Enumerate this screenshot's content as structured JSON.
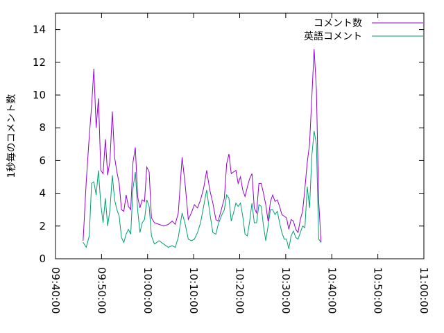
{
  "chart_data": {
    "type": "line",
    "ylabel": "1秒毎のコメント数",
    "ylim": [
      0,
      15
    ],
    "yticks": [
      0,
      2,
      4,
      6,
      8,
      10,
      12,
      14
    ],
    "xlim": [
      "09:40:00",
      "11:00:00"
    ],
    "xticks": [
      "09:40:00",
      "09:50:00",
      "10:00:00",
      "10:10:00",
      "10:20:00",
      "10:30:00",
      "10:40:00",
      "10:50:00",
      "11:00:00"
    ],
    "legend_position": "top-right",
    "grid": false,
    "series": [
      {
        "name": "コメント数",
        "color": "#9400d3",
        "points": [
          [
            "09:46:00",
            1.1
          ],
          [
            "09:46:40",
            4.7
          ],
          [
            "09:47:20",
            7.5
          ],
          [
            "09:47:50",
            9.3
          ],
          [
            "09:48:20",
            11.6
          ],
          [
            "09:48:50",
            8.0
          ],
          [
            "09:49:20",
            9.8
          ],
          [
            "09:49:50",
            5.4
          ],
          [
            "09:50:20",
            5.2
          ],
          [
            "09:50:50",
            7.3
          ],
          [
            "09:51:20",
            5.1
          ],
          [
            "09:51:50",
            6.0
          ],
          [
            "09:52:20",
            9.0
          ],
          [
            "09:52:50",
            6.2
          ],
          [
            "09:53:20",
            5.3
          ],
          [
            "09:53:50",
            4.6
          ],
          [
            "09:54:20",
            3.0
          ],
          [
            "09:54:50",
            2.9
          ],
          [
            "09:55:20",
            3.9
          ],
          [
            "09:55:50",
            3.2
          ],
          [
            "09:56:20",
            3.0
          ],
          [
            "09:56:50",
            5.9
          ],
          [
            "09:57:20",
            6.8
          ],
          [
            "09:57:50",
            3.8
          ],
          [
            "09:58:20",
            3.1
          ],
          [
            "09:58:50",
            3.6
          ],
          [
            "09:59:20",
            3.5
          ],
          [
            "09:59:50",
            5.6
          ],
          [
            "10:00:20",
            5.3
          ],
          [
            "10:00:50",
            2.5
          ],
          [
            "10:01:30",
            2.2
          ],
          [
            "10:02:30",
            2.1
          ],
          [
            "10:03:30",
            2.0
          ],
          [
            "10:04:30",
            2.1
          ],
          [
            "10:05:20",
            2.3
          ],
          [
            "10:06:00",
            2.1
          ],
          [
            "10:06:40",
            2.8
          ],
          [
            "10:07:30",
            6.2
          ],
          [
            "10:08:10",
            4.5
          ],
          [
            "10:08:50",
            2.4
          ],
          [
            "10:09:30",
            2.8
          ],
          [
            "10:10:10",
            3.3
          ],
          [
            "10:10:50",
            3.1
          ],
          [
            "10:11:30",
            3.6
          ],
          [
            "10:12:10",
            4.3
          ],
          [
            "10:12:50",
            5.4
          ],
          [
            "10:13:30",
            4.2
          ],
          [
            "10:14:10",
            3.4
          ],
          [
            "10:14:50",
            2.4
          ],
          [
            "10:15:20",
            2.3
          ],
          [
            "10:16:00",
            3.0
          ],
          [
            "10:16:40",
            3.7
          ],
          [
            "10:17:10",
            5.8
          ],
          [
            "10:17:40",
            6.4
          ],
          [
            "10:18:10",
            5.2
          ],
          [
            "10:18:40",
            5.3
          ],
          [
            "10:19:10",
            5.4
          ],
          [
            "10:19:40",
            4.6
          ],
          [
            "10:20:10",
            5.0
          ],
          [
            "10:20:40",
            4.2
          ],
          [
            "10:21:10",
            3.8
          ],
          [
            "10:21:40",
            4.4
          ],
          [
            "10:22:10",
            4.9
          ],
          [
            "10:22:40",
            5.2
          ],
          [
            "10:23:10",
            3.1
          ],
          [
            "10:23:40",
            2.8
          ],
          [
            "10:24:10",
            4.6
          ],
          [
            "10:24:40",
            4.6
          ],
          [
            "10:25:10",
            4.0
          ],
          [
            "10:25:40",
            3.3
          ],
          [
            "10:26:10",
            2.3
          ],
          [
            "10:26:40",
            3.5
          ],
          [
            "10:27:10",
            3.9
          ],
          [
            "10:27:40",
            3.5
          ],
          [
            "10:28:10",
            3.6
          ],
          [
            "10:28:40",
            3.2
          ],
          [
            "10:29:10",
            2.7
          ],
          [
            "10:29:40",
            2.6
          ],
          [
            "10:30:10",
            2.5
          ],
          [
            "10:30:40",
            1.8
          ],
          [
            "10:31:10",
            2.4
          ],
          [
            "10:31:40",
            2.3
          ],
          [
            "10:32:10",
            1.8
          ],
          [
            "10:32:40",
            1.6
          ],
          [
            "10:33:10",
            2.4
          ],
          [
            "10:33:40",
            2.9
          ],
          [
            "10:34:10",
            4.3
          ],
          [
            "10:34:40",
            5.9
          ],
          [
            "10:35:10",
            7.0
          ],
          [
            "10:35:40",
            9.9
          ],
          [
            "10:36:10",
            12.8
          ],
          [
            "10:36:40",
            10.3
          ],
          [
            "10:37:10",
            3.5
          ],
          [
            "10:37:40",
            1.0
          ]
        ]
      },
      {
        "name": "英語コメント",
        "color": "#009e73",
        "points": [
          [
            "09:46:00",
            1.0
          ],
          [
            "09:46:40",
            0.7
          ],
          [
            "09:47:20",
            1.4
          ],
          [
            "09:47:50",
            4.6
          ],
          [
            "09:48:20",
            4.7
          ],
          [
            "09:48:50",
            3.9
          ],
          [
            "09:49:20",
            5.4
          ],
          [
            "09:49:50",
            3.3
          ],
          [
            "09:50:20",
            2.2
          ],
          [
            "09:50:50",
            3.7
          ],
          [
            "09:51:20",
            2.0
          ],
          [
            "09:51:50",
            3.0
          ],
          [
            "09:52:20",
            5.1
          ],
          [
            "09:52:50",
            3.6
          ],
          [
            "09:53:20",
            3.0
          ],
          [
            "09:53:50",
            2.6
          ],
          [
            "09:54:20",
            1.3
          ],
          [
            "09:54:50",
            1.0
          ],
          [
            "09:55:20",
            1.5
          ],
          [
            "09:55:50",
            1.8
          ],
          [
            "09:56:20",
            1.5
          ],
          [
            "09:56:50",
            4.3
          ],
          [
            "09:57:20",
            5.3
          ],
          [
            "09:57:50",
            3.0
          ],
          [
            "09:58:20",
            1.6
          ],
          [
            "09:58:50",
            2.2
          ],
          [
            "09:59:20",
            2.4
          ],
          [
            "09:59:50",
            3.6
          ],
          [
            "10:00:20",
            3.2
          ],
          [
            "10:00:50",
            1.4
          ],
          [
            "10:01:30",
            0.9
          ],
          [
            "10:02:30",
            1.1
          ],
          [
            "10:03:30",
            0.9
          ],
          [
            "10:04:30",
            0.7
          ],
          [
            "10:05:20",
            0.8
          ],
          [
            "10:06:00",
            0.7
          ],
          [
            "10:06:40",
            1.3
          ],
          [
            "10:07:30",
            2.8
          ],
          [
            "10:08:10",
            2.1
          ],
          [
            "10:08:50",
            1.2
          ],
          [
            "10:09:30",
            1.1
          ],
          [
            "10:10:10",
            1.2
          ],
          [
            "10:10:50",
            1.6
          ],
          [
            "10:11:30",
            2.2
          ],
          [
            "10:12:10",
            3.2
          ],
          [
            "10:12:50",
            4.2
          ],
          [
            "10:13:30",
            2.8
          ],
          [
            "10:14:10",
            1.6
          ],
          [
            "10:14:50",
            1.5
          ],
          [
            "10:15:20",
            2.1
          ],
          [
            "10:16:00",
            2.6
          ],
          [
            "10:16:40",
            3.0
          ],
          [
            "10:17:10",
            3.9
          ],
          [
            "10:17:40",
            3.7
          ],
          [
            "10:18:10",
            2.3
          ],
          [
            "10:18:40",
            2.8
          ],
          [
            "10:19:10",
            3.4
          ],
          [
            "10:19:40",
            3.2
          ],
          [
            "10:20:10",
            3.4
          ],
          [
            "10:20:40",
            2.6
          ],
          [
            "10:21:10",
            1.5
          ],
          [
            "10:21:40",
            1.4
          ],
          [
            "10:22:10",
            2.3
          ],
          [
            "10:22:40",
            3.4
          ],
          [
            "10:23:10",
            2.2
          ],
          [
            "10:23:40",
            2.2
          ],
          [
            "10:24:10",
            3.3
          ],
          [
            "10:24:40",
            3.2
          ],
          [
            "10:25:10",
            2.0
          ],
          [
            "10:25:40",
            1.1
          ],
          [
            "10:26:10",
            2.0
          ],
          [
            "10:26:40",
            3.0
          ],
          [
            "10:27:10",
            3.0
          ],
          [
            "10:27:40",
            2.7
          ],
          [
            "10:28:10",
            2.9
          ],
          [
            "10:28:40",
            2.2
          ],
          [
            "10:29:10",
            1.6
          ],
          [
            "10:29:40",
            1.2
          ],
          [
            "10:30:10",
            1.2
          ],
          [
            "10:30:40",
            0.6
          ],
          [
            "10:31:10",
            1.4
          ],
          [
            "10:31:40",
            1.7
          ],
          [
            "10:32:10",
            1.3
          ],
          [
            "10:32:40",
            1.2
          ],
          [
            "10:33:10",
            1.6
          ],
          [
            "10:33:40",
            2.0
          ],
          [
            "10:34:10",
            1.9
          ],
          [
            "10:34:40",
            4.4
          ],
          [
            "10:35:10",
            3.1
          ],
          [
            "10:35:40",
            6.3
          ],
          [
            "10:36:10",
            7.8
          ],
          [
            "10:36:40",
            7.0
          ],
          [
            "10:37:10",
            1.2
          ],
          [
            "10:37:40",
            1.0
          ]
        ]
      }
    ]
  }
}
